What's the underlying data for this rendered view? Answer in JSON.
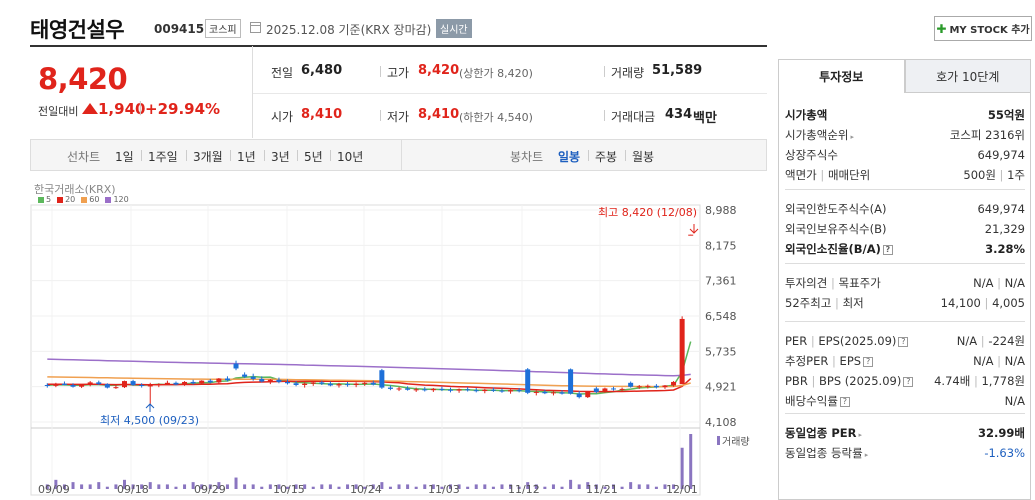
{
  "header": {
    "title": "태영건설우",
    "code": "009415",
    "market_badge": "코스피",
    "date_text": "2025.12.08 기준(KRX 장마감)",
    "realtime_badge": "실시간",
    "mystock_label": "MY STOCK 추가"
  },
  "summary": {
    "price": "8,420",
    "change_label": "전일대비",
    "change_value": "1,940",
    "change_pct": "+29.94%",
    "prev_close_label": "전일",
    "prev_close": "6,480",
    "high_label": "고가",
    "high": "8,420",
    "upper_limit_text": "(상한가 8,420)",
    "volume_label": "거래량",
    "volume": "51,589",
    "open_label": "시가",
    "open": "8,410",
    "low_label": "저가",
    "low": "8,410",
    "lower_limit_text": "(하한가 4,540)",
    "amount_label": "거래대금",
    "amount": "434",
    "amount_unit": "백만"
  },
  "period_bar": {
    "line_chart": "선차트",
    "periods": [
      "1일",
      "1주일",
      "3개월",
      "1년",
      "3년",
      "5년",
      "10년"
    ],
    "candle_chart": "봉차트",
    "candle_periods": [
      "일봉",
      "주봉",
      "월봉"
    ],
    "active_candle": "일봉"
  },
  "chart": {
    "source": "한국거래소(KRX)",
    "ma_legend": [
      {
        "label": "5",
        "color": "#5cb85c"
      },
      {
        "label": "20",
        "color": "#e0241b"
      },
      {
        "label": "60",
        "color": "#f0a050"
      },
      {
        "label": "120",
        "color": "#9b6fc9"
      }
    ],
    "high_annotation": "최고 8,420 (12/08)",
    "low_annotation": "최저 4,500 (09/23)",
    "volume_label": "거래량",
    "up_color": "#e0241b",
    "down_color": "#1d6fd8"
  },
  "chart_data": {
    "type": "candlestick",
    "y_ticks": [
      "8,988",
      "8,175",
      "7,361",
      "6,548",
      "5,735",
      "4,921",
      "4,108"
    ],
    "ylim": [
      4108,
      8988
    ],
    "x_ticks": [
      "09/09",
      "09/18",
      "09/29",
      "10/15",
      "10/24",
      "11/03",
      "11/12",
      "11/21",
      "12/01"
    ],
    "candles": [
      {
        "o": 4960,
        "h": 5000,
        "l": 4900,
        "c": 4940
      },
      {
        "o": 4940,
        "h": 5010,
        "l": 4910,
        "c": 4990
      },
      {
        "o": 4990,
        "h": 5040,
        "l": 4950,
        "c": 4960
      },
      {
        "o": 4960,
        "h": 5000,
        "l": 4900,
        "c": 4920
      },
      {
        "o": 4920,
        "h": 4980,
        "l": 4890,
        "c": 4960
      },
      {
        "o": 4960,
        "h": 5050,
        "l": 4930,
        "c": 5020
      },
      {
        "o": 5020,
        "h": 5060,
        "l": 4960,
        "c": 4980
      },
      {
        "o": 4980,
        "h": 5000,
        "l": 4880,
        "c": 4900
      },
      {
        "o": 4900,
        "h": 4950,
        "l": 4870,
        "c": 4910
      },
      {
        "o": 4910,
        "h": 5060,
        "l": 4890,
        "c": 5050
      },
      {
        "o": 5050,
        "h": 5080,
        "l": 4940,
        "c": 4960
      },
      {
        "o": 4960,
        "h": 5000,
        "l": 4900,
        "c": 4940
      },
      {
        "o": 4940,
        "h": 5010,
        "l": 4500,
        "c": 4950
      },
      {
        "o": 4950,
        "h": 5000,
        "l": 4910,
        "c": 4980
      },
      {
        "o": 4980,
        "h": 5060,
        "l": 4960,
        "c": 5010
      },
      {
        "o": 5010,
        "h": 5040,
        "l": 4950,
        "c": 4970
      },
      {
        "o": 4970,
        "h": 5050,
        "l": 4940,
        "c": 5030
      },
      {
        "o": 5030,
        "h": 5080,
        "l": 4970,
        "c": 5000
      },
      {
        "o": 5000,
        "h": 5070,
        "l": 4960,
        "c": 5060
      },
      {
        "o": 5060,
        "h": 5100,
        "l": 5000,
        "c": 5020
      },
      {
        "o": 5020,
        "h": 5120,
        "l": 4990,
        "c": 5110
      },
      {
        "o": 5110,
        "h": 5160,
        "l": 5040,
        "c": 5070
      },
      {
        "o": 5450,
        "h": 5520,
        "l": 5300,
        "c": 5340
      },
      {
        "o": 5200,
        "h": 5250,
        "l": 5120,
        "c": 5150
      },
      {
        "o": 5150,
        "h": 5220,
        "l": 5060,
        "c": 5100
      },
      {
        "o": 5100,
        "h": 5160,
        "l": 5020,
        "c": 5040
      },
      {
        "o": 5040,
        "h": 5100,
        "l": 4980,
        "c": 5080
      },
      {
        "o": 5080,
        "h": 5130,
        "l": 5000,
        "c": 5030
      },
      {
        "o": 5030,
        "h": 5090,
        "l": 4970,
        "c": 5000
      },
      {
        "o": 5000,
        "h": 5050,
        "l": 4930,
        "c": 4960
      },
      {
        "o": 4960,
        "h": 5020,
        "l": 4900,
        "c": 4990
      },
      {
        "o": 4990,
        "h": 5050,
        "l": 4940,
        "c": 5020
      },
      {
        "o": 5020,
        "h": 5060,
        "l": 4960,
        "c": 4990
      },
      {
        "o": 4990,
        "h": 5040,
        "l": 4930,
        "c": 4950
      },
      {
        "o": 4950,
        "h": 5010,
        "l": 4900,
        "c": 4980
      },
      {
        "o": 4980,
        "h": 5030,
        "l": 4920,
        "c": 4960
      },
      {
        "o": 4960,
        "h": 5020,
        "l": 4910,
        "c": 4990
      },
      {
        "o": 4990,
        "h": 5040,
        "l": 4940,
        "c": 5010
      },
      {
        "o": 5010,
        "h": 5060,
        "l": 4950,
        "c": 4970
      },
      {
        "o": 5300,
        "h": 5330,
        "l": 4870,
        "c": 4900
      },
      {
        "o": 4900,
        "h": 4950,
        "l": 4840,
        "c": 4870
      },
      {
        "o": 4870,
        "h": 4920,
        "l": 4820,
        "c": 4880
      },
      {
        "o": 4880,
        "h": 4930,
        "l": 4830,
        "c": 4850
      },
      {
        "o": 4850,
        "h": 4900,
        "l": 4800,
        "c": 4860
      },
      {
        "o": 4860,
        "h": 4910,
        "l": 4810,
        "c": 4840
      },
      {
        "o": 4840,
        "h": 4890,
        "l": 4800,
        "c": 4870
      },
      {
        "o": 4870,
        "h": 4920,
        "l": 4820,
        "c": 4850
      },
      {
        "o": 4850,
        "h": 4900,
        "l": 4790,
        "c": 4830
      },
      {
        "o": 4830,
        "h": 4880,
        "l": 4780,
        "c": 4860
      },
      {
        "o": 4860,
        "h": 4910,
        "l": 4810,
        "c": 4840
      },
      {
        "o": 4840,
        "h": 4890,
        "l": 4790,
        "c": 4820
      },
      {
        "o": 4820,
        "h": 4870,
        "l": 4770,
        "c": 4850
      },
      {
        "o": 4850,
        "h": 4900,
        "l": 4800,
        "c": 4830
      },
      {
        "o": 4830,
        "h": 4880,
        "l": 4780,
        "c": 4810
      },
      {
        "o": 4810,
        "h": 4860,
        "l": 4760,
        "c": 4840
      },
      {
        "o": 4840,
        "h": 4890,
        "l": 4790,
        "c": 4820
      },
      {
        "o": 5320,
        "h": 5350,
        "l": 4750,
        "c": 4780
      },
      {
        "o": 4780,
        "h": 4830,
        "l": 4720,
        "c": 4800
      },
      {
        "o": 4800,
        "h": 4850,
        "l": 4750,
        "c": 4770
      },
      {
        "o": 4770,
        "h": 4820,
        "l": 4720,
        "c": 4790
      },
      {
        "o": 4790,
        "h": 4840,
        "l": 4740,
        "c": 4760
      },
      {
        "o": 5320,
        "h": 5340,
        "l": 4740,
        "c": 4760
      },
      {
        "o": 4760,
        "h": 4820,
        "l": 4650,
        "c": 4680
      },
      {
        "o": 4680,
        "h": 4820,
        "l": 4660,
        "c": 4800
      },
      {
        "o": 4880,
        "h": 4920,
        "l": 4770,
        "c": 4800
      },
      {
        "o": 4800,
        "h": 4900,
        "l": 4780,
        "c": 4880
      },
      {
        "o": 4880,
        "h": 4920,
        "l": 4830,
        "c": 4860
      },
      {
        "o": 4860,
        "h": 4900,
        "l": 4810,
        "c": 4870
      },
      {
        "o": 5010,
        "h": 5040,
        "l": 4900,
        "c": 4920
      },
      {
        "o": 4920,
        "h": 4960,
        "l": 4870,
        "c": 4930
      },
      {
        "o": 4930,
        "h": 4970,
        "l": 4880,
        "c": 4940
      },
      {
        "o": 4940,
        "h": 4980,
        "l": 4880,
        "c": 4910
      },
      {
        "o": 4910,
        "h": 4960,
        "l": 4870,
        "c": 4950
      },
      {
        "o": 4950,
        "h": 5050,
        "l": 4920,
        "c": 5030
      },
      {
        "o": 4980,
        "h": 6540,
        "l": 4980,
        "c": 6480
      },
      {
        "o": 8410,
        "h": 8420,
        "l": 8410,
        "c": 8420
      }
    ],
    "volumes": [
      2,
      4,
      2,
      3,
      2,
      2,
      3,
      1,
      2,
      4,
      2,
      2,
      3,
      2,
      2,
      1,
      2,
      3,
      2,
      2,
      3,
      2,
      5,
      2,
      2,
      1,
      2,
      2,
      1,
      2,
      2,
      1,
      2,
      2,
      1,
      2,
      2,
      1,
      2,
      3,
      1,
      2,
      2,
      1,
      2,
      2,
      1,
      2,
      2,
      1,
      2,
      2,
      1,
      2,
      2,
      1,
      3,
      2,
      1,
      2,
      1,
      4,
      2,
      3,
      2,
      1,
      2,
      1,
      3,
      2,
      2,
      1,
      2,
      2,
      18,
      24
    ]
  },
  "invest_panel": {
    "tab_active": "투자정보",
    "tab_inactive": "호가 10단계",
    "rows1": [
      {
        "label": "시가총액",
        "value": "55억원",
        "bold": true
      },
      {
        "label": "시가총액순위",
        "value": "코스피 2316위",
        "tri": true
      },
      {
        "label": "상장주식수",
        "value": "649,974"
      },
      {
        "label": "액면가",
        "label2": "매매단위",
        "value": "500원",
        "value2": "1주"
      }
    ],
    "rows2": [
      {
        "label": "외국인한도주식수(A)",
        "value": "649,974"
      },
      {
        "label": "외국인보유주식수(B)",
        "value": "21,329"
      },
      {
        "label": "외국인소진율(B/A)",
        "value": "3.28%",
        "bold": true,
        "qm": true
      }
    ],
    "rows3": [
      {
        "label": "투자의견",
        "label2": "목표주가",
        "value": "N/A",
        "value2": "N/A"
      },
      {
        "label": "52주최고",
        "label2": "최저",
        "value": "14,100",
        "value2": "4,005"
      }
    ],
    "rows4": [
      {
        "label": "PER",
        "label2": "EPS(2025.09)",
        "value": "N/A",
        "value2": "-224원",
        "qm": true
      },
      {
        "label": "추정PER",
        "label2": "EPS",
        "value": "N/A",
        "value2": "N/A",
        "qm": true
      },
      {
        "label": "PBR",
        "label2": "BPS (2025.09)",
        "value": "4.74배",
        "value2": "1,778원",
        "qm": true
      },
      {
        "label": "배당수익률",
        "value": "N/A",
        "qm": true
      }
    ],
    "rows5": [
      {
        "label": "동일업종 PER",
        "value": "32.99배",
        "bold": true,
        "tri": true
      },
      {
        "label": "동일업종 등락률",
        "value": "-1.63%",
        "blue": true,
        "tri": true
      }
    ]
  }
}
